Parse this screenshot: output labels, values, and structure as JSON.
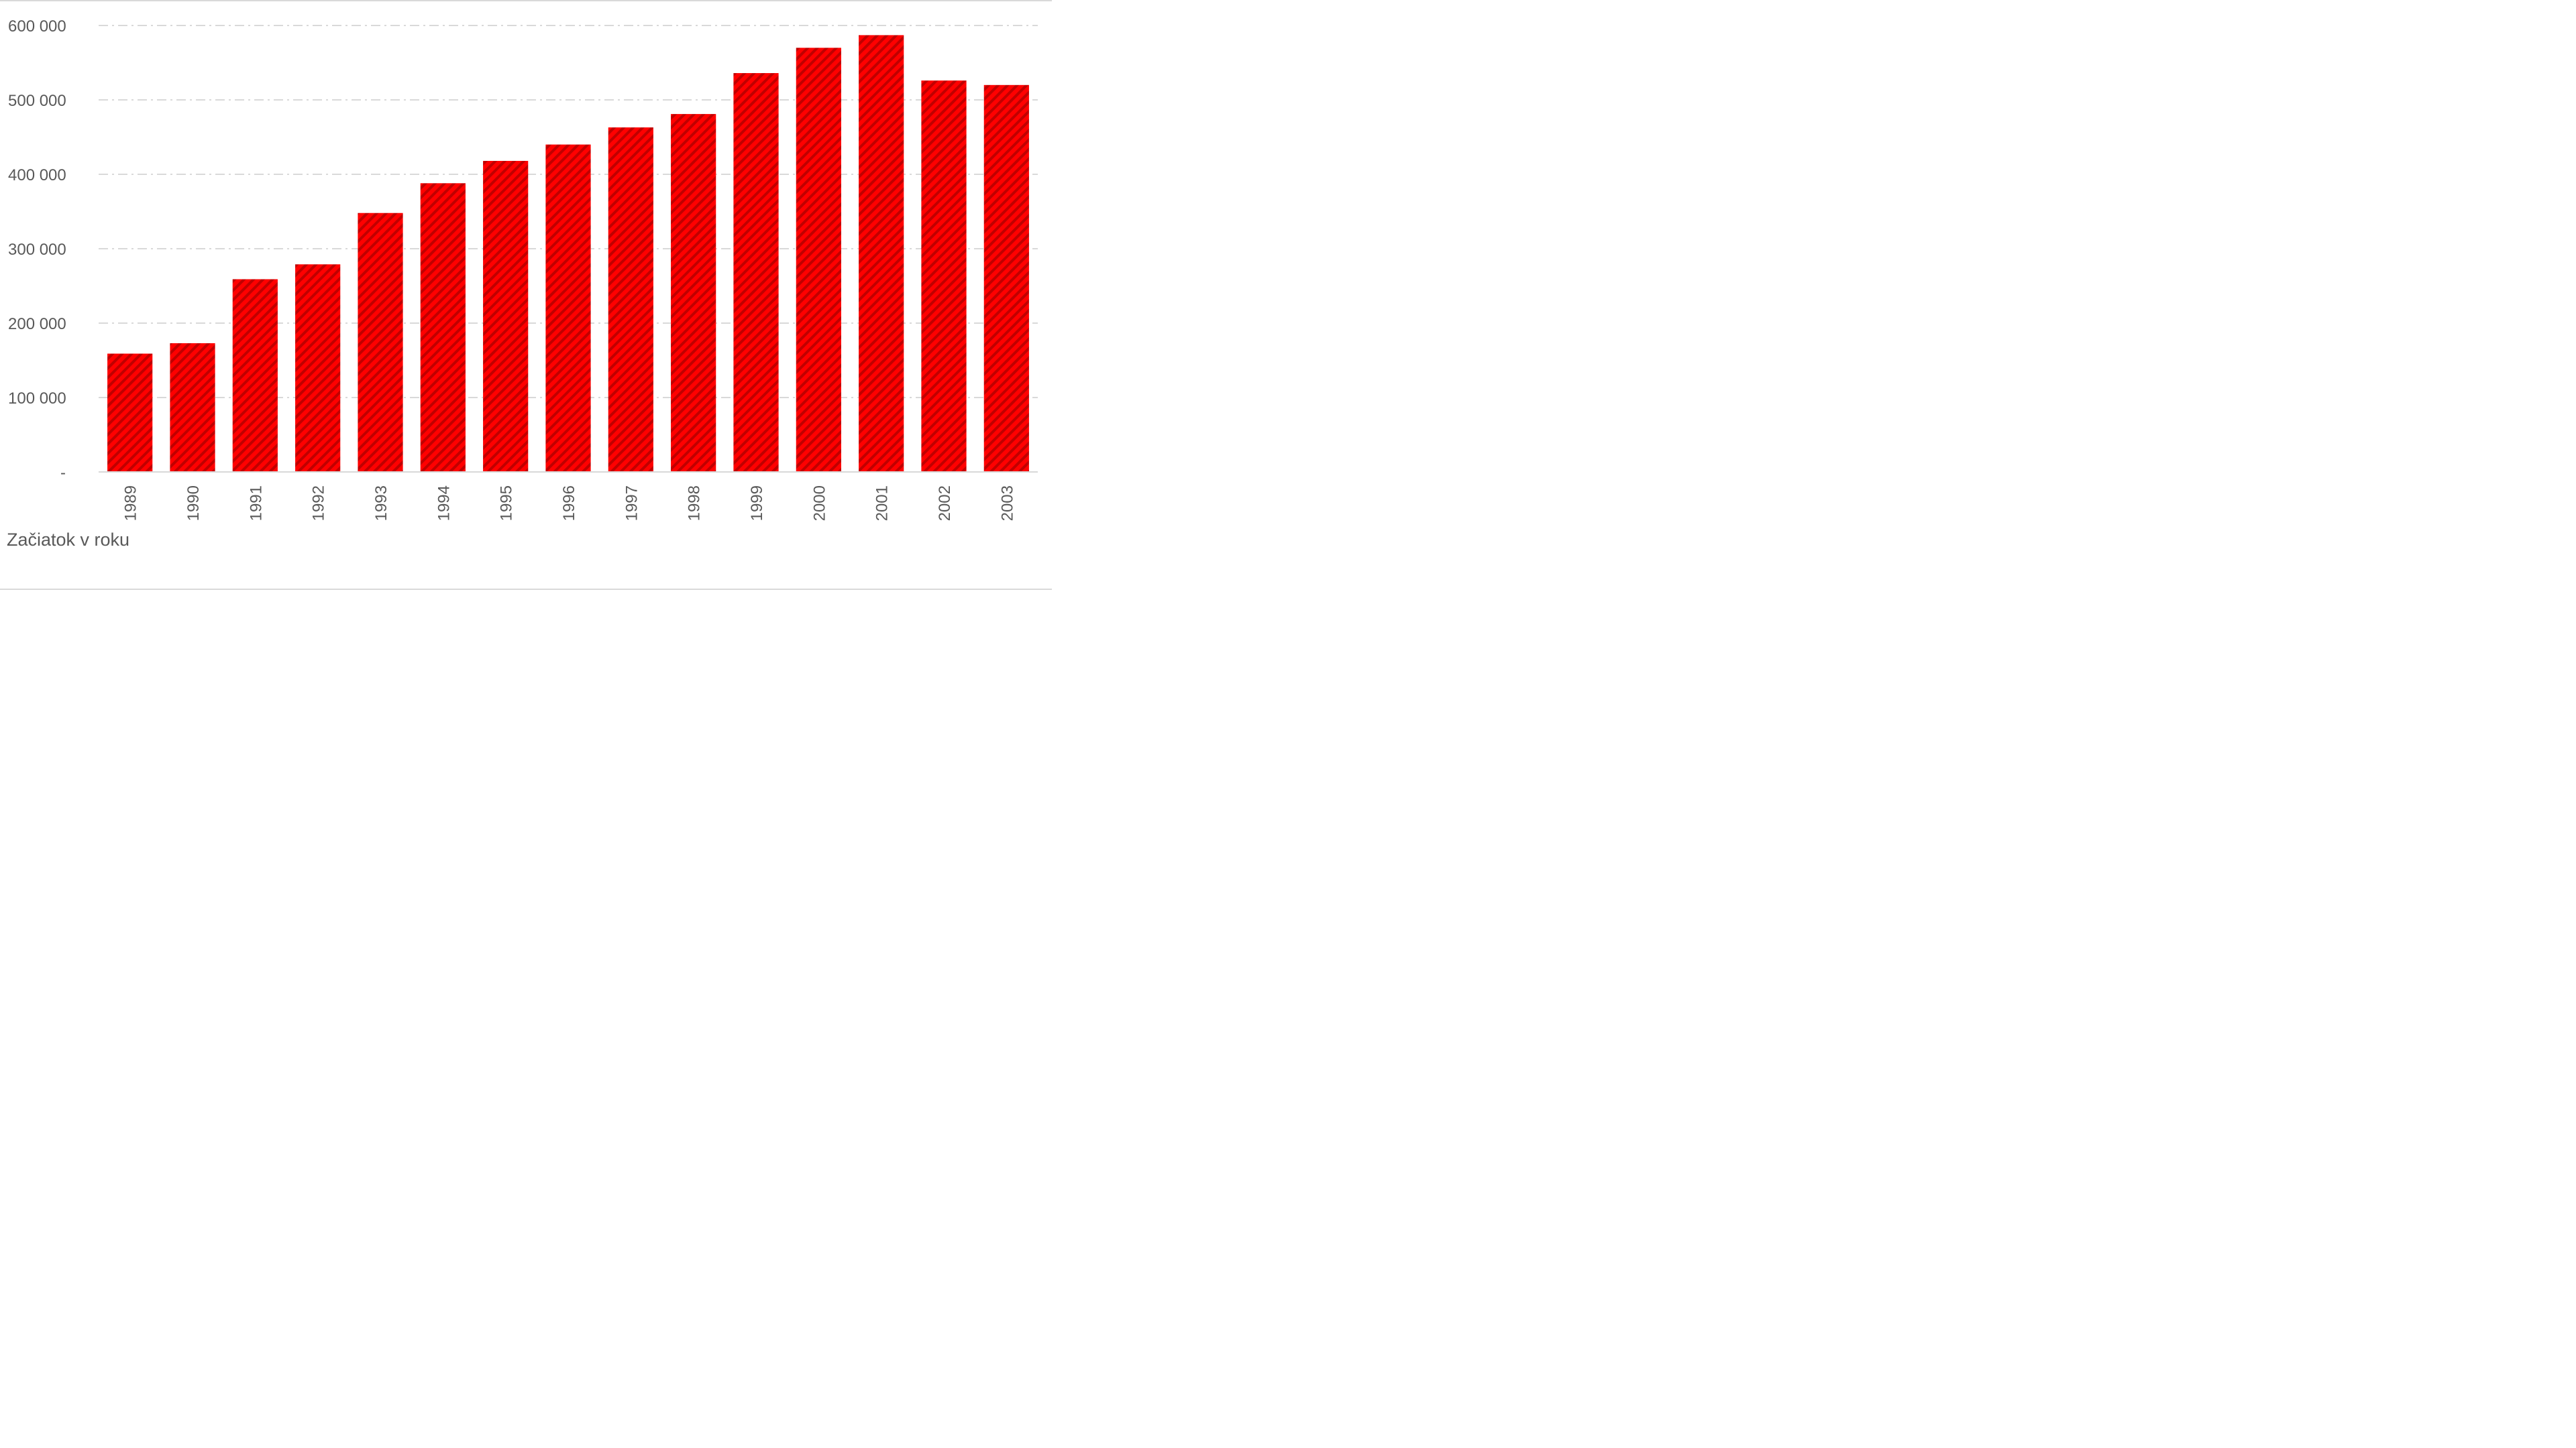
{
  "chart_data": {
    "type": "bar",
    "categories": [
      "1989",
      "1990",
      "1991",
      "1992",
      "1993",
      "1994",
      "1995",
      "1996",
      "1997",
      "1998",
      "1999",
      "2000",
      "2001",
      "2002",
      "2003"
    ],
    "series": [
      {
        "values": [
          159000,
          173000,
          259000,
          279000,
          348000,
          388000,
          418000,
          440000,
          463000,
          481000,
          536000,
          570000,
          587000,
          526000,
          520000
        ]
      }
    ],
    "ylim": [
      0,
      600000
    ],
    "yticks": [
      0,
      100000,
      200000,
      300000,
      400000,
      500000,
      600000
    ],
    "ytick_labels": [
      "-",
      "100 000",
      "200 000",
      "300 000",
      "400 000",
      "500 000",
      "600 000"
    ],
    "xlabel": "Začiatok v roku",
    "ylabel": "",
    "grid": true,
    "grid_style": "dash-dot",
    "legend": "none",
    "colors": {
      "bar": "#ff0000",
      "bar_hatch": "#c00000",
      "grid": "#d9d9d9",
      "axis": "#d9d9d9",
      "text": "#595959"
    }
  }
}
